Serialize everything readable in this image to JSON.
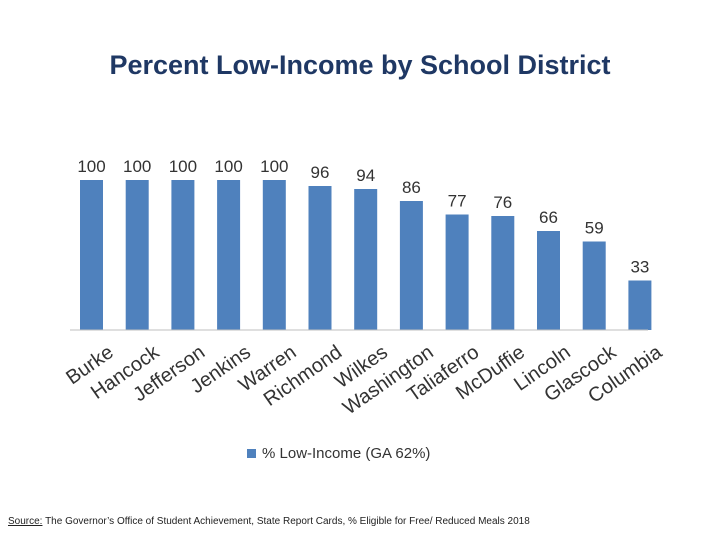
{
  "title": "Percent Low-Income by School District",
  "chart_data": {
    "type": "bar",
    "title": "Percent Low-Income by School District",
    "categories": [
      "Burke",
      "Hancock",
      "Jefferson",
      "Jenkins",
      "Warren",
      "Richmond",
      "Wilkes",
      "Washington",
      "Taliaferro",
      "McDuffie",
      "Lincoln",
      "Glascock",
      "Columbia"
    ],
    "series": [
      {
        "name": "% Low-Income (GA 62%)",
        "values": [
          100,
          100,
          100,
          100,
          100,
          96,
          94,
          86,
          77,
          76,
          66,
          59,
          33
        ]
      }
    ],
    "ylim": [
      0,
      100
    ],
    "grid": false,
    "data_labels": true,
    "legend_position": "bottom",
    "bar_color": "#4f81bd"
  },
  "legend": {
    "label": "% Low-Income (GA 62%)"
  },
  "source": {
    "prefix": "Source:",
    "text": " The Governor’s Office of Student Achievement, State Report Cards, % Eligible for Free/ Reduced Meals 2018"
  }
}
